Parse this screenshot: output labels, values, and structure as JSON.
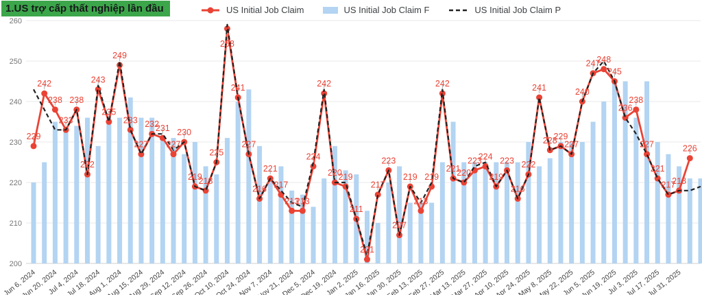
{
  "header": {
    "title": "1.US trợ cấp thất nghiệp lần đầu"
  },
  "legend": {
    "items": [
      {
        "label": "US Initial Job Claim",
        "marker": "red-line-dot",
        "color": "#EA4335"
      },
      {
        "label": "US Initial Job Claim F",
        "marker": "blue-square",
        "color": "#B3D4F2"
      },
      {
        "label": "US Initial Job Claim P",
        "marker": "black-dashed",
        "color": "#212121"
      }
    ]
  },
  "chart_data": {
    "type": "line+bar",
    "title": "1.US trợ cấp thất nghiệp lần đầu",
    "ylim": [
      200,
      260
    ],
    "y_ticks": [
      200,
      210,
      220,
      230,
      240,
      250,
      260
    ],
    "grid": true,
    "legend_position": "top",
    "x_tick_every": 2,
    "x_tick_labels": [
      "Jun 6, 2024",
      "Jun 20, 2024",
      "Jul 4, 2024",
      "Jul 18, 2024",
      "Aug 1, 2024",
      "Aug 15, 2024",
      "Aug 29, 2024",
      "Sep 12, 2024",
      "Sep 26, 2024",
      "Oct 10, 2024",
      "Oct 24, 2024",
      "Nov 7, 2024",
      "Nov 21, 2024",
      "Dec 5, 2024",
      "Dec 19, 2024",
      "Jan 2, 2025",
      "Jan 16, 2025",
      "Jan 30, 2025",
      "Feb 13, 2025",
      "Feb 27, 2025",
      "Mar 13, 2025",
      "Mar 27, 2025",
      "Apr 10, 2025",
      "Apr 24, 2025",
      "May 8, 2025",
      "May 22, 2025",
      "Jun 5, 2025",
      "Jun 19, 2025",
      "Jul 3, 2025",
      "Jul 17, 2025",
      "Jul 31, 2025"
    ],
    "series": [
      {
        "name": "US Initial Job Claim",
        "type": "line",
        "color": "#EA4335",
        "show_point_labels": true,
        "values": [
          229,
          242,
          238,
          233,
          238,
          222,
          243,
          235,
          249,
          233,
          227,
          232,
          231,
          227,
          230,
          219,
          218,
          225,
          258,
          241,
          227,
          216,
          221,
          217,
          213,
          213,
          224,
          242,
          220,
          219,
          211,
          201,
          217,
          223,
          207,
          219,
          213,
          219,
          242,
          221,
          220,
          223,
          224,
          219,
          223,
          216,
          222,
          241,
          228,
          229,
          227,
          240,
          247,
          248,
          245,
          236,
          238,
          227,
          221,
          217,
          218,
          226
        ]
      },
      {
        "name": "US Initial Job Claim F",
        "type": "bar",
        "color": "#B3D4F2",
        "values": [
          220,
          225,
          235,
          233,
          234,
          236,
          229,
          236,
          236,
          241,
          236,
          236,
          231,
          231,
          227,
          230,
          224,
          222,
          231,
          240,
          243,
          229,
          221,
          224,
          218,
          217,
          214,
          221,
          229,
          223,
          222,
          213,
          210,
          220,
          224,
          215,
          215,
          215,
          225,
          235,
          225,
          225,
          225,
          225,
          225,
          225,
          230,
          224,
          226,
          230,
          230,
          230,
          235,
          240,
          245,
          245,
          236,
          245,
          230,
          227,
          224,
          221,
          221
        ]
      },
      {
        "name": "US Initial Job Claim P",
        "type": "line-dashed",
        "color": "#212121",
        "values": [
          243,
          238,
          233,
          233,
          238,
          222,
          244,
          235,
          250,
          233,
          227,
          232,
          232,
          228,
          230,
          219,
          218,
          225,
          259,
          241,
          227,
          216,
          221,
          218,
          215,
          214,
          225,
          243,
          220,
          220,
          211,
          202,
          217,
          223,
          207,
          219,
          215,
          220,
          243,
          221,
          220,
          224,
          225,
          219,
          223,
          216,
          222,
          241,
          228,
          229,
          227,
          240,
          247,
          250,
          245,
          236,
          232,
          227,
          221,
          217,
          218,
          218,
          219
        ]
      }
    ]
  },
  "axis_style": {
    "y_label_color": "#757575",
    "x_label_color": "#424242",
    "gridline_color": "#e8e8e8",
    "baseline_color": "#cfcfcf",
    "stem_color": "#b0b0b0"
  }
}
